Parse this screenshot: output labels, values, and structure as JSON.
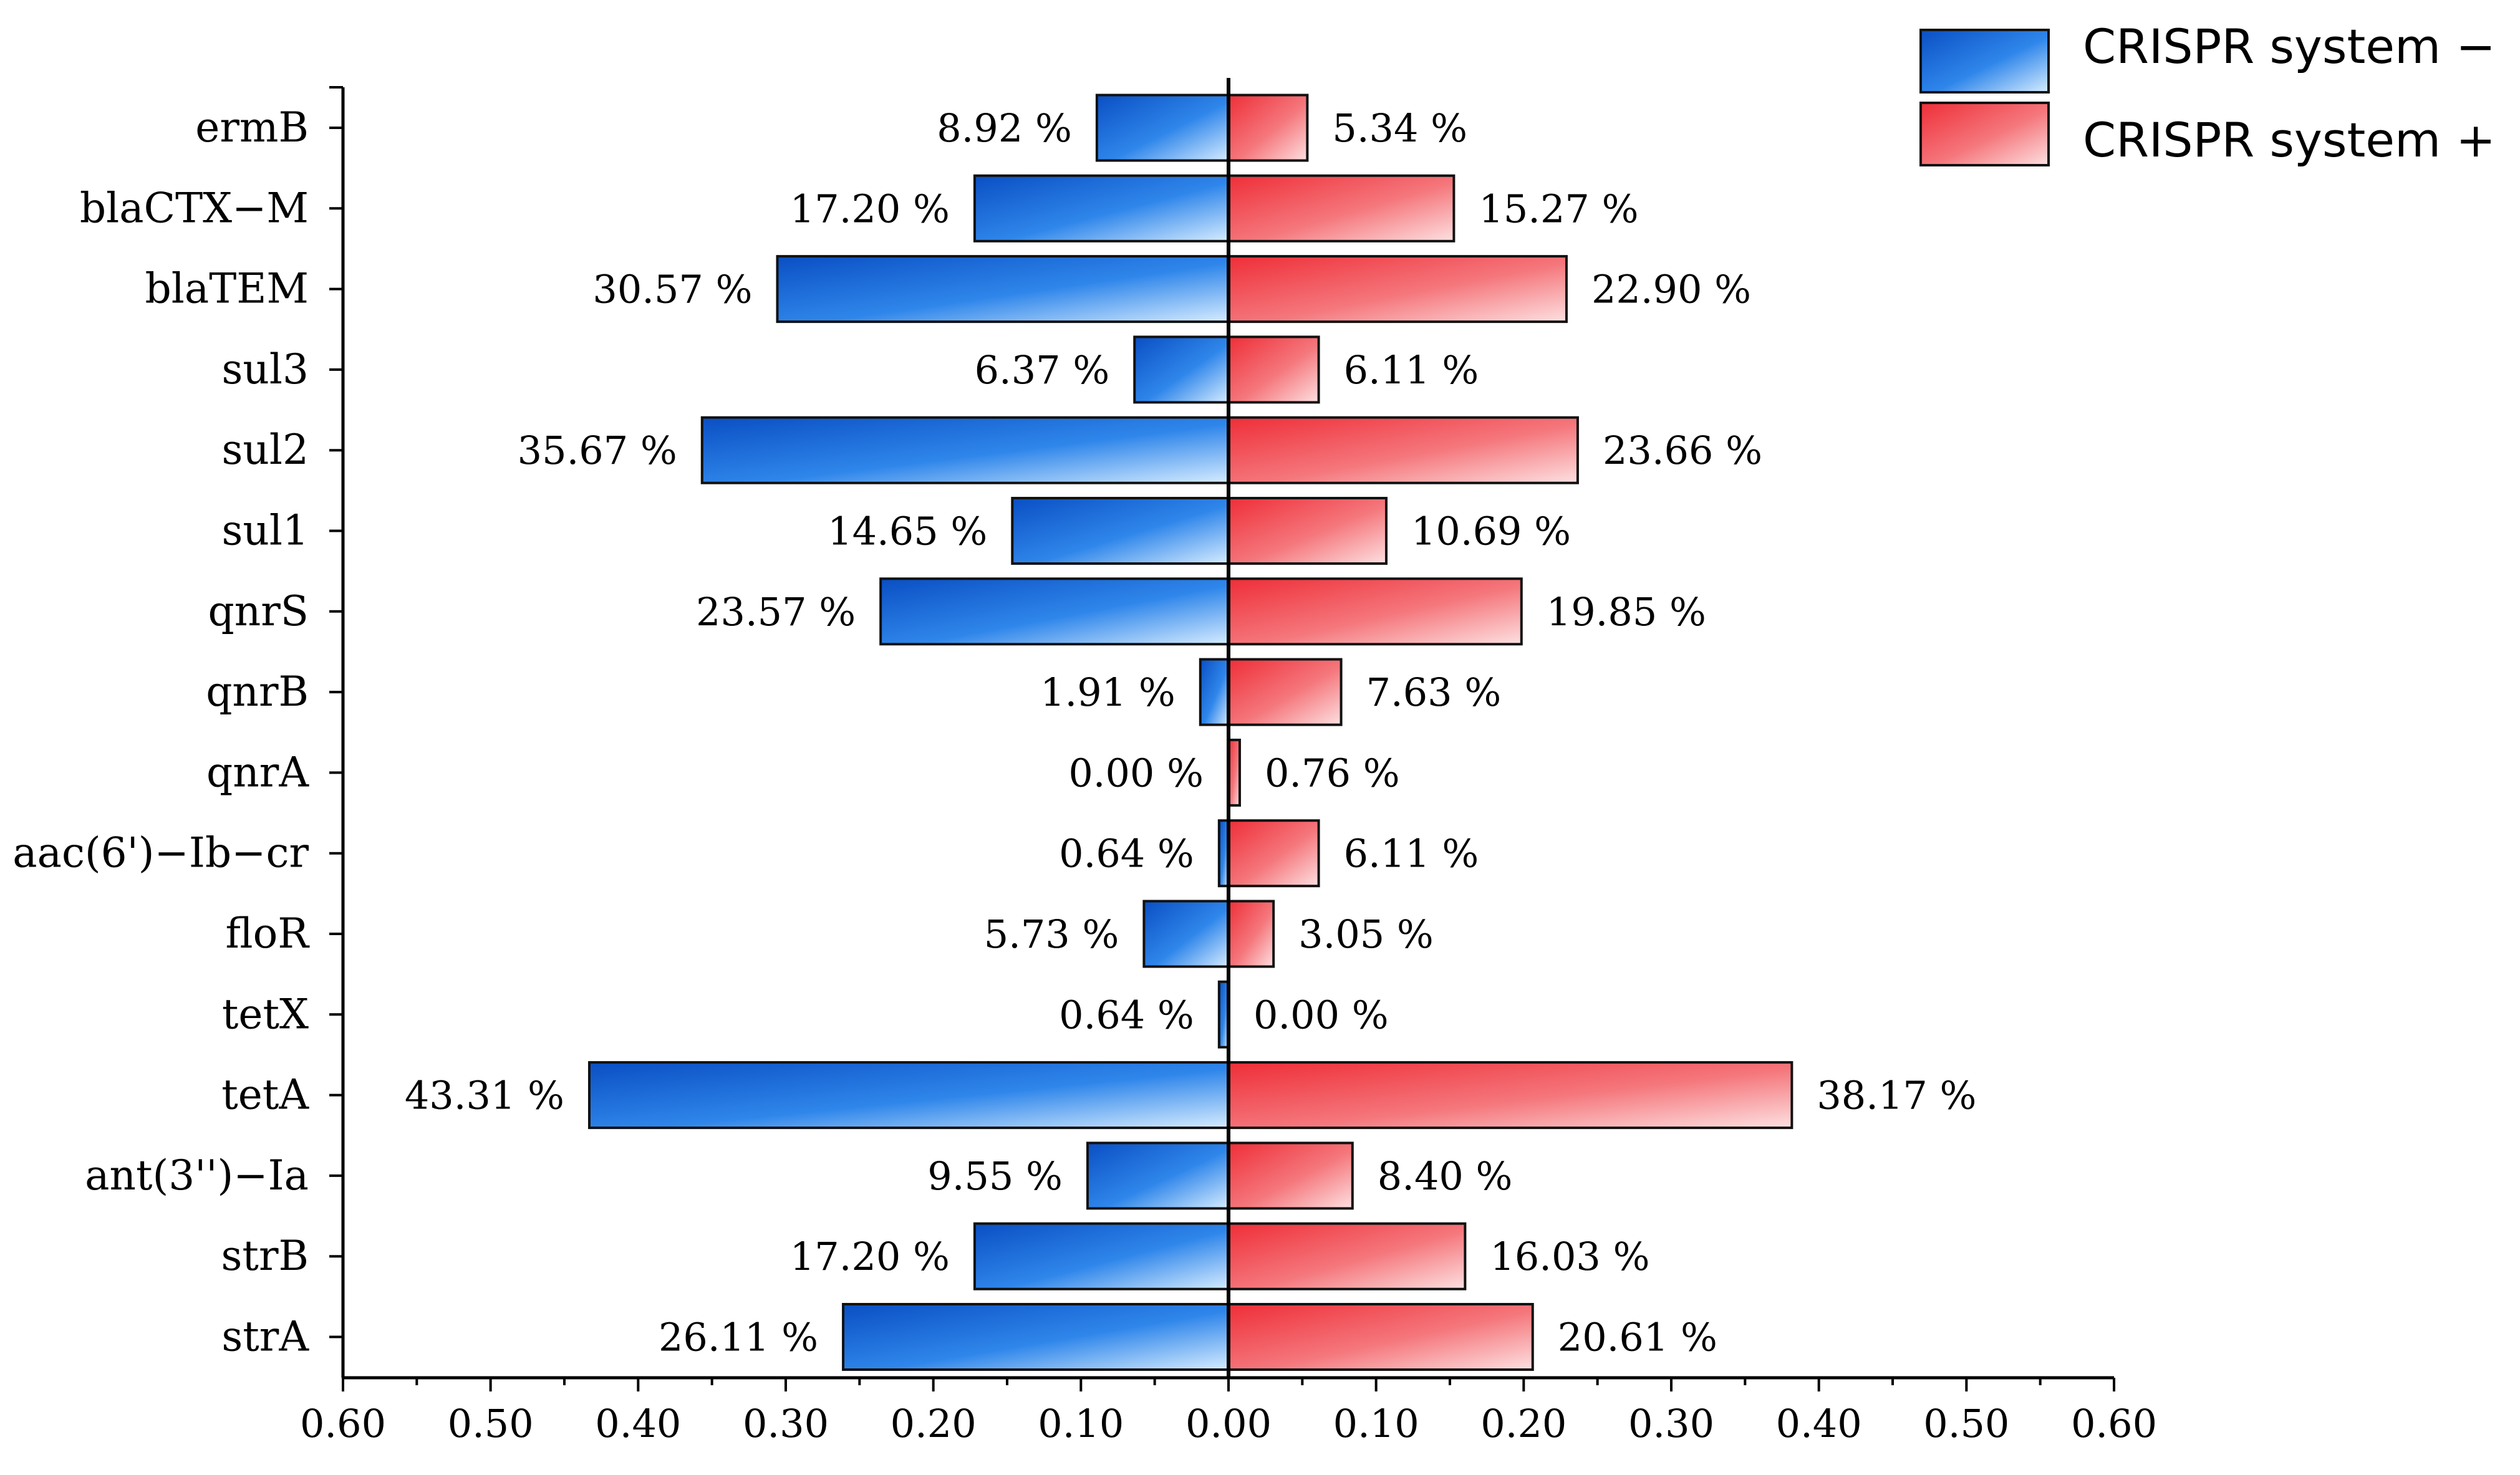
{
  "chart_data": {
    "type": "bar",
    "orientation": "horizontal-diverging",
    "categories": [
      "ermB",
      "blaCTX−M",
      "blaTEM",
      "sul3",
      "sul2",
      "sul1",
      "qnrS",
      "qnrB",
      "qnrA",
      "aac(6')−Ib−cr",
      "floR",
      "tetX",
      "tetA",
      "ant(3'')−Ia",
      "strB",
      "strA"
    ],
    "series": [
      {
        "name": "CRISPR system −",
        "side": "left",
        "color": "#1f6fd6",
        "values": [
          0.0892,
          0.172,
          0.3057,
          0.0637,
          0.3567,
          0.1465,
          0.2357,
          0.0191,
          0.0,
          0.0064,
          0.0573,
          0.0064,
          0.4331,
          0.0955,
          0.172,
          0.2611
        ],
        "labels": [
          "8.92 %",
          "17.20 %",
          "30.57 %",
          "6.37 %",
          "35.67 %",
          "14.65 %",
          "23.57 %",
          "1.91 %",
          "0.00 %",
          "0.64 %",
          "5.73 %",
          "0.64 %",
          "43.31 %",
          "9.55 %",
          "17.20 %",
          "26.11 %"
        ]
      },
      {
        "name": "CRISPR system +",
        "side": "right",
        "color": "#f05a5f",
        "values": [
          0.0534,
          0.1527,
          0.229,
          0.0611,
          0.2366,
          0.1069,
          0.1985,
          0.0763,
          0.0076,
          0.0611,
          0.0305,
          0.0,
          0.3817,
          0.084,
          0.1603,
          0.2061
        ],
        "labels": [
          "5.34 %",
          "15.27 %",
          "22.90 %",
          "6.11 %",
          "23.66 %",
          "10.69 %",
          "19.85 %",
          "7.63 %",
          "0.76 %",
          "6.11 %",
          "3.05 %",
          "0.00 %",
          "38.17 %",
          "8.40 %",
          "16.03 %",
          "20.61 %"
        ]
      }
    ],
    "xlim": [
      -0.6,
      0.6
    ],
    "xticks": [
      -0.6,
      -0.5,
      -0.4,
      -0.3,
      -0.2,
      -0.1,
      0.0,
      0.1,
      0.2,
      0.3,
      0.4,
      0.5,
      0.6
    ],
    "xtick_labels": [
      "0.60",
      "0.50",
      "0.40",
      "0.30",
      "0.20",
      "0.10",
      "0.00",
      "0.10",
      "0.20",
      "0.30",
      "0.40",
      "0.50",
      "0.60"
    ],
    "title": "",
    "xlabel": "",
    "ylabel": "",
    "legend_position": "top-right"
  }
}
